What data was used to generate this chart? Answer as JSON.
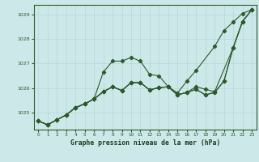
{
  "background_color": "#cce8e8",
  "grid_color": "#b8d8d8",
  "line_color": "#2d5a2d",
  "title": "Graphe pression niveau de la mer (hPa)",
  "xlim": [
    -0.5,
    23.5
  ],
  "ylim": [
    1024.3,
    1029.4
  ],
  "yticks": [
    1025,
    1026,
    1027,
    1028,
    1029
  ],
  "xticks": [
    0,
    1,
    2,
    3,
    4,
    5,
    6,
    7,
    8,
    9,
    10,
    11,
    12,
    13,
    14,
    15,
    16,
    17,
    18,
    19,
    20,
    21,
    22,
    23
  ],
  "line1_x": [
    0,
    1,
    2,
    3,
    4,
    5,
    6,
    7,
    8,
    9,
    10,
    11,
    12,
    13,
    14,
    15,
    16,
    17,
    19,
    20,
    21,
    22,
    23
  ],
  "line1_y": [
    1024.65,
    1024.5,
    1024.7,
    1024.9,
    1025.2,
    1025.35,
    1025.55,
    1026.65,
    1027.1,
    1027.1,
    1027.25,
    1027.1,
    1026.55,
    1026.5,
    1026.05,
    1025.8,
    1026.28,
    1026.72,
    1027.7,
    1028.35,
    1028.7,
    1029.05,
    1029.2
  ],
  "line2_x": [
    0,
    1,
    2,
    3,
    4,
    5,
    6,
    7,
    8,
    9,
    10,
    11,
    12,
    13,
    14,
    15,
    16,
    17,
    18,
    19,
    21,
    22,
    23
  ],
  "line2_y": [
    1024.65,
    1024.5,
    1024.7,
    1024.9,
    1025.2,
    1025.35,
    1025.55,
    1025.85,
    1026.05,
    1025.9,
    1026.22,
    1026.22,
    1025.92,
    1026.02,
    1026.05,
    1025.72,
    1025.82,
    1026.05,
    1025.95,
    1025.85,
    1027.65,
    1028.72,
    1029.2
  ],
  "line3_x": [
    0,
    1,
    2,
    3,
    4,
    5,
    6,
    7,
    8,
    9,
    10,
    11,
    12,
    13,
    14,
    15,
    16,
    17,
    18,
    19,
    20,
    21,
    22,
    23
  ],
  "line3_y": [
    1024.65,
    1024.5,
    1024.7,
    1024.9,
    1025.2,
    1025.35,
    1025.55,
    1025.85,
    1026.05,
    1025.9,
    1026.22,
    1026.22,
    1025.92,
    1026.02,
    1026.05,
    1025.72,
    1025.82,
    1025.95,
    1025.72,
    1025.82,
    1026.28,
    1027.65,
    1028.72,
    1029.2
  ],
  "line4_x": [
    0,
    1,
    2,
    3,
    4,
    5,
    6,
    7,
    8,
    9,
    10,
    11,
    12,
    13,
    14,
    15,
    16,
    17,
    18,
    19,
    20,
    21,
    22,
    23
  ],
  "line4_y": [
    1024.65,
    1024.5,
    1024.7,
    1024.9,
    1025.2,
    1025.35,
    1025.55,
    1025.85,
    1026.05,
    1025.9,
    1026.22,
    1026.22,
    1025.92,
    1026.02,
    1026.05,
    1025.72,
    1025.82,
    1025.95,
    1025.72,
    1025.82,
    1026.28,
    1027.65,
    1028.72,
    1029.2
  ]
}
